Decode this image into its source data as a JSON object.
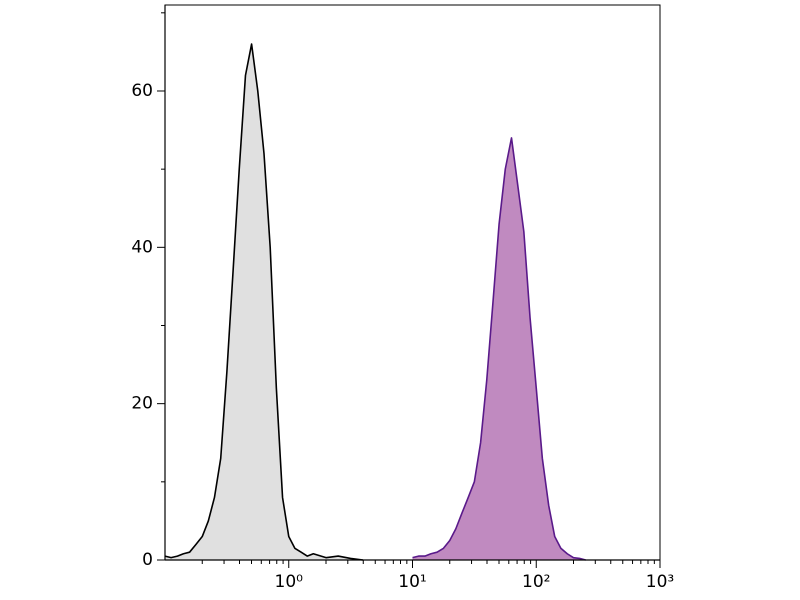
{
  "chart_data": {
    "type": "histogram-overlay",
    "xscale": "log",
    "xlim": [
      0.1,
      1000
    ],
    "xticks": [
      {
        "value": 1,
        "label": "10⁰"
      },
      {
        "value": 10,
        "label": "10¹"
      },
      {
        "value": 100,
        "label": "10²"
      },
      {
        "value": 1000,
        "label": "10³"
      }
    ],
    "xminorticks": [
      0.2,
      0.3,
      0.4,
      0.5,
      0.6,
      0.7,
      0.8,
      0.9,
      2,
      3,
      4,
      5,
      6,
      7,
      8,
      9,
      20,
      30,
      40,
      50,
      60,
      70,
      80,
      90,
      200,
      300,
      400,
      500,
      600,
      700,
      800,
      900
    ],
    "ylim": [
      0,
      71
    ],
    "yticks": [
      0,
      20,
      40,
      60
    ],
    "yminorticks": [
      10,
      30,
      50,
      70
    ],
    "series": [
      {
        "color": "#000000",
        "fill": "#e0e0e0",
        "x": [
          0.1,
          0.112,
          0.126,
          0.141,
          0.158,
          0.178,
          0.2,
          0.224,
          0.251,
          0.282,
          0.316,
          0.355,
          0.398,
          0.447,
          0.501,
          0.562,
          0.631,
          0.708,
          0.794,
          0.891,
          1,
          1.12,
          1.26,
          1.41,
          1.58,
          2,
          2.51,
          3.16,
          3.98
        ],
        "values": [
          0.5,
          0.3,
          0.5,
          0.8,
          1,
          2,
          3,
          5,
          8,
          13,
          24,
          37,
          50,
          62,
          66,
          60,
          52,
          40,
          22,
          8,
          3,
          1.5,
          1,
          0.5,
          0.8,
          0.3,
          0.5,
          0.2,
          0
        ]
      },
      {
        "color": "#5a1a8a",
        "fill": "#c08ac0",
        "x": [
          10,
          11.2,
          12.6,
          14.1,
          15.8,
          17.8,
          20,
          22.4,
          25.1,
          28.2,
          31.6,
          35.5,
          39.8,
          44.7,
          50.1,
          56.2,
          63.1,
          70.8,
          79.4,
          89.1,
          100,
          112,
          126,
          141,
          158,
          178,
          200,
          224,
          251
        ],
        "values": [
          0.3,
          0.5,
          0.5,
          0.8,
          1,
          1.5,
          2.5,
          4,
          6,
          8,
          10,
          15,
          23,
          33,
          43,
          50,
          54,
          48,
          42,
          31,
          22,
          13,
          7,
          3,
          1.5,
          0.8,
          0.3,
          0.2,
          0
        ]
      }
    ]
  }
}
